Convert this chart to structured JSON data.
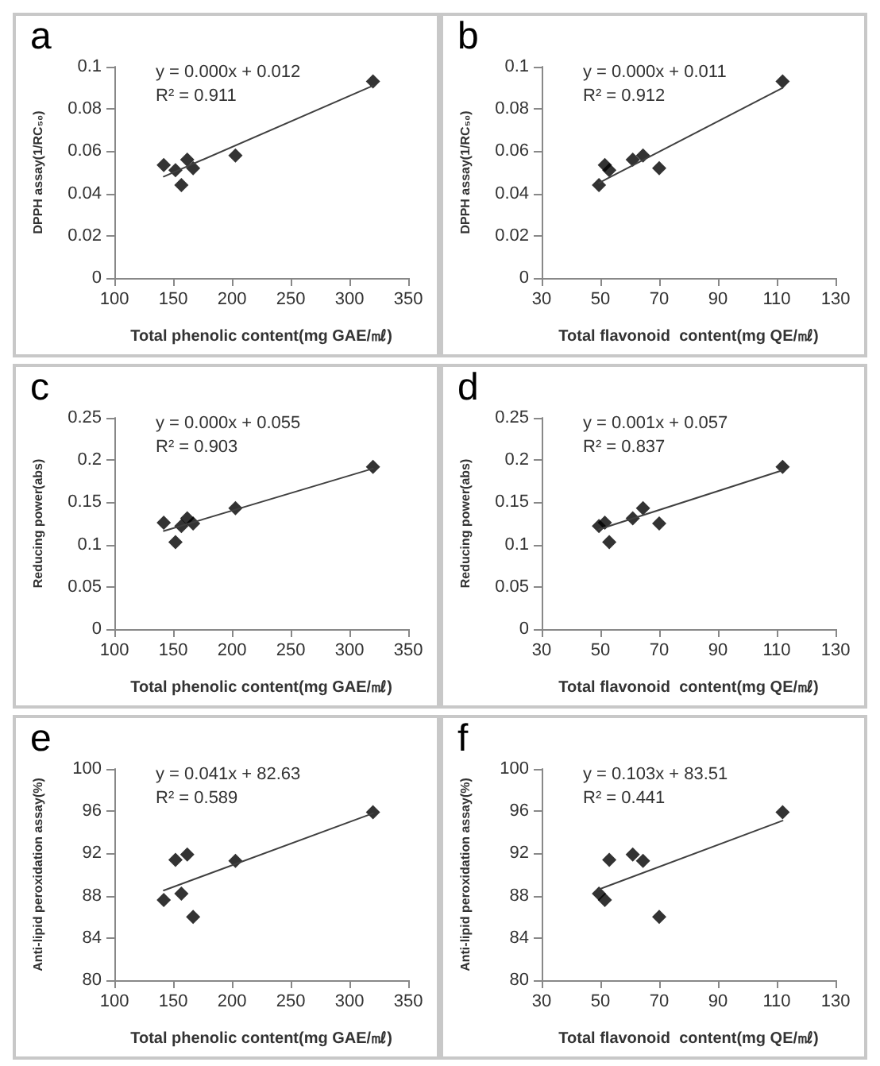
{
  "chart_data": [
    {
      "type": "scatter",
      "title": "a",
      "xlabel": "Total phenolic content(mg GAE/㎖)",
      "ylabel": "DPPH assay(1/RC₅₀)",
      "xlim": [
        100,
        350
      ],
      "xticks": [
        100,
        150,
        200,
        250,
        300,
        350
      ],
      "ylim": [
        0,
        0.1
      ],
      "yticks": [
        0,
        0.02,
        0.04,
        0.06,
        0.08,
        0.1
      ],
      "grid": false,
      "marker": "diamond",
      "annotations": [
        "y = 0.000x + 0.012",
        "R² = 0.911"
      ],
      "series": [
        {
          "color": "#000000",
          "x": [
            142,
            152,
            157,
            162,
            167,
            203,
            320
          ],
          "values": [
            0.0535,
            0.051,
            0.044,
            0.056,
            0.052,
            0.058,
            0.093
          ]
        },
        {
          "type": "line",
          "color": "#404040",
          "marker": "none",
          "x": [
            142,
            320
          ],
          "values": [
            0.048,
            0.091
          ]
        }
      ]
    },
    {
      "type": "scatter",
      "title": "b",
      "xlabel": "Total flavonoid  content(mg QE/㎖)",
      "ylabel": "DPPH assay(1/RC₅₀)",
      "xlim": [
        30,
        130
      ],
      "xticks": [
        30,
        50,
        70,
        90,
        110,
        130
      ],
      "ylim": [
        0,
        0.1
      ],
      "yticks": [
        0,
        0.02,
        0.04,
        0.06,
        0.08,
        0.1
      ],
      "grid": false,
      "marker": "diamond",
      "annotations": [
        "y = 0.000x + 0.011",
        "R² = 0.912"
      ],
      "series": [
        {
          "color": "#000000",
          "x": [
            51.5,
            53,
            49.5,
            61,
            70,
            64.5,
            112
          ],
          "values": [
            0.0535,
            0.051,
            0.044,
            0.056,
            0.052,
            0.058,
            0.093
          ]
        },
        {
          "type": "line",
          "color": "#404040",
          "marker": "none",
          "x": [
            49.5,
            112
          ],
          "values": [
            0.045,
            0.09
          ]
        }
      ]
    },
    {
      "type": "scatter",
      "title": "c",
      "xlabel": "Total phenolic content(mg GAE/㎖)",
      "ylabel": "Reducing power(abs)",
      "xlim": [
        100,
        350
      ],
      "xticks": [
        100,
        150,
        200,
        250,
        300,
        350
      ],
      "ylim": [
        0,
        0.25
      ],
      "yticks": [
        0,
        0.05,
        0.1,
        0.15,
        0.2,
        0.25
      ],
      "grid": false,
      "marker": "diamond",
      "annotations": [
        "y = 0.000x + 0.055",
        "R² = 0.903"
      ],
      "series": [
        {
          "color": "#000000",
          "x": [
            142,
            152,
            157,
            162,
            167,
            203,
            320
          ],
          "values": [
            0.126,
            0.103,
            0.122,
            0.131,
            0.125,
            0.143,
            0.192
          ]
        },
        {
          "type": "line",
          "color": "#404040",
          "marker": "none",
          "x": [
            142,
            320
          ],
          "values": [
            0.116,
            0.19
          ]
        }
      ]
    },
    {
      "type": "scatter",
      "title": "d",
      "xlabel": "Total flavonoid  content(mg QE/㎖)",
      "ylabel": "Reducing power(abs)",
      "xlim": [
        30,
        130
      ],
      "xticks": [
        30,
        50,
        70,
        90,
        110,
        130
      ],
      "ylim": [
        0,
        0.25
      ],
      "yticks": [
        0,
        0.05,
        0.1,
        0.15,
        0.2,
        0.25
      ],
      "grid": false,
      "marker": "diamond",
      "annotations": [
        "y = 0.001x + 0.057",
        "R² = 0.837"
      ],
      "series": [
        {
          "color": "#000000",
          "x": [
            51.5,
            53,
            49.5,
            61,
            70,
            64.5,
            112
          ],
          "values": [
            0.126,
            0.103,
            0.122,
            0.131,
            0.125,
            0.143,
            0.192
          ]
        },
        {
          "type": "line",
          "color": "#404040",
          "marker": "none",
          "x": [
            49.5,
            112
          ],
          "values": [
            0.118,
            0.188
          ]
        }
      ]
    },
    {
      "type": "scatter",
      "title": "e",
      "xlabel": "Total phenolic content(mg GAE/㎖)",
      "ylabel": "Anti-lipid peroxidation assay(%)",
      "xlim": [
        100,
        350
      ],
      "xticks": [
        100,
        150,
        200,
        250,
        300,
        350
      ],
      "ylim": [
        80,
        100
      ],
      "yticks": [
        80,
        84,
        88,
        92,
        96,
        100
      ],
      "grid": false,
      "marker": "diamond",
      "annotations": [
        "y = 0.041x + 82.63",
        "R² = 0.589"
      ],
      "series": [
        {
          "color": "#000000",
          "x": [
            142,
            152,
            157,
            162,
            167,
            203,
            320
          ],
          "values": [
            87.6,
            91.4,
            88.2,
            91.9,
            86.0,
            91.3,
            95.9
          ]
        },
        {
          "type": "line",
          "color": "#404040",
          "marker": "none",
          "x": [
            142,
            320
          ],
          "values": [
            88.5,
            95.8
          ]
        }
      ]
    },
    {
      "type": "scatter",
      "title": "f",
      "xlabel": "Total flavonoid  content(mg QE/㎖)",
      "ylabel": "Anti-lipid peroxidation assay(%)",
      "xlim": [
        30,
        130
      ],
      "xticks": [
        30,
        50,
        70,
        90,
        110,
        130
      ],
      "ylim": [
        80,
        100
      ],
      "yticks": [
        80,
        84,
        88,
        92,
        96,
        100
      ],
      "grid": false,
      "marker": "diamond",
      "annotations": [
        "y = 0.103x + 83.51",
        "R² = 0.441"
      ],
      "series": [
        {
          "color": "#000000",
          "x": [
            51.5,
            53,
            49.5,
            61,
            70,
            64.5,
            112
          ],
          "values": [
            87.6,
            91.4,
            88.2,
            91.9,
            86.0,
            91.3,
            95.9
          ]
        },
        {
          "type": "line",
          "color": "#404040",
          "marker": "none",
          "x": [
            49.5,
            112
          ],
          "values": [
            88.6,
            95.1
          ]
        }
      ]
    }
  ]
}
